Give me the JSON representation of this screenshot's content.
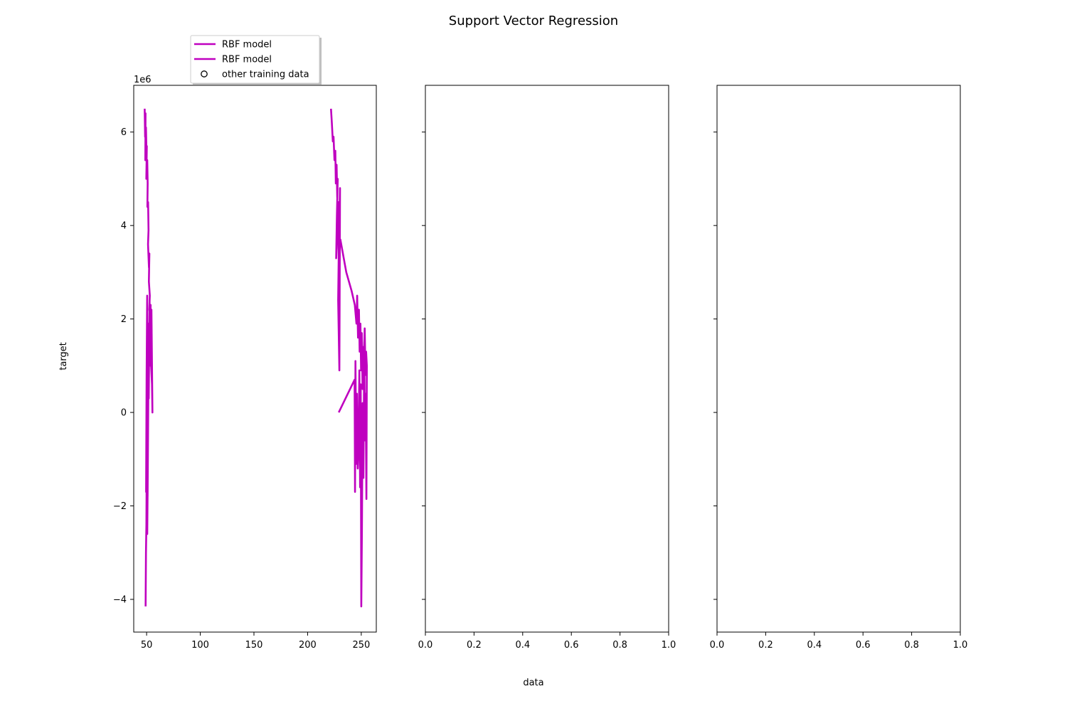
{
  "figure": {
    "title": "Support Vector Regression",
    "xlabel": "data",
    "ylabel": "target"
  },
  "legend": {
    "placement": "above-left",
    "entries": [
      {
        "label": "RBF model",
        "marker": "line",
        "color": "#bf00bf"
      },
      {
        "label": "RBF model",
        "marker": "line",
        "color": "#bf00bf"
      },
      {
        "label": "other training data",
        "marker": "open-circle",
        "color": "#000000"
      }
    ]
  },
  "chart_data": [
    {
      "type": "line",
      "name": "panel-1",
      "xlim": [
        38,
        264
      ],
      "ylim": [
        -4.7,
        7.0
      ],
      "y_scale_note": "1e6",
      "xticks": [
        {
          "value": 50,
          "label": "50"
        },
        {
          "value": 100,
          "label": "100"
        },
        {
          "value": 150,
          "label": "150"
        },
        {
          "value": 200,
          "label": "200"
        },
        {
          "value": 250,
          "label": "250"
        }
      ],
      "yticks": [
        {
          "value": -4,
          "label": "−4"
        },
        {
          "value": -2,
          "label": "−2"
        },
        {
          "value": 0,
          "label": "0"
        },
        {
          "value": 2,
          "label": "2"
        },
        {
          "value": 4,
          "label": "4"
        },
        {
          "value": 6,
          "label": "6"
        }
      ],
      "line_color": "#bf00bf",
      "series": [
        {
          "points": [
            [
              48.2,
              6.5
            ],
            [
              48.6,
              5.9
            ],
            [
              49.0,
              6.4
            ],
            [
              48.8,
              5.4
            ],
            [
              49.4,
              6.1
            ],
            [
              49.9,
              5.5
            ],
            [
              50.2,
              5.7
            ],
            [
              49.7,
              5.0
            ],
            [
              50.6,
              5.4
            ],
            [
              51.0,
              4.9
            ],
            [
              50.7,
              4.4
            ],
            [
              51.4,
              4.5
            ],
            [
              51.8,
              3.9
            ],
            [
              51.3,
              3.6
            ],
            [
              52.2,
              3.1
            ],
            [
              52.6,
              3.4
            ],
            [
              52.1,
              2.8
            ],
            [
              53.0,
              2.5
            ],
            [
              52.5,
              2.2
            ],
            [
              53.4,
              2.0
            ],
            [
              53.8,
              2.3
            ],
            [
              53.2,
              1.7
            ],
            [
              54.2,
              1.8
            ],
            [
              54.6,
              1.4
            ],
            [
              54.0,
              1.1
            ],
            [
              55.0,
              0.6
            ],
            [
              55.4,
              0.0
            ],
            [
              54.5,
              2.2
            ],
            [
              53.6,
              1.0
            ],
            [
              52.8,
              2.4
            ],
            [
              52.0,
              0.3
            ],
            [
              51.5,
              1.9
            ],
            [
              51.0,
              -0.5
            ],
            [
              50.5,
              2.5
            ],
            [
              50.0,
              0.8
            ],
            [
              49.5,
              -1.7
            ],
            [
              50.2,
              1.2
            ],
            [
              50.9,
              -1.8
            ],
            [
              51.6,
              0.4
            ],
            [
              51.1,
              -1.2
            ],
            [
              50.6,
              -2.6
            ],
            [
              50.1,
              -0.8
            ],
            [
              49.8,
              -2.4
            ],
            [
              49.4,
              -3.0
            ],
            [
              49.1,
              -4.15
            ]
          ]
        },
        {
          "points": [
            [
              221.8,
              6.5
            ],
            [
              222.6,
              6.2
            ],
            [
              223.5,
              5.8
            ],
            [
              224.2,
              5.9
            ],
            [
              225.0,
              5.4
            ],
            [
              225.8,
              5.6
            ],
            [
              226.3,
              4.9
            ],
            [
              227.0,
              5.3
            ],
            [
              227.6,
              4.6
            ],
            [
              228.1,
              5.0
            ],
            [
              227.3,
              4.2
            ],
            [
              226.6,
              3.3
            ],
            [
              227.9,
              3.8
            ],
            [
              228.8,
              4.5
            ],
            [
              229.3,
              3.9
            ],
            [
              228.5,
              2.4
            ],
            [
              229.6,
              0.9
            ],
            [
              230.2,
              4.8
            ],
            [
              229.0,
              3.5
            ],
            [
              230.5,
              3.7
            ],
            [
              236.0,
              3.0
            ],
            [
              241.0,
              2.6
            ],
            [
              244.0,
              2.3
            ],
            [
              245.5,
              1.9
            ],
            [
              246.2,
              2.5
            ],
            [
              247.0,
              1.6
            ],
            [
              247.8,
              2.2
            ],
            [
              248.5,
              1.3
            ],
            [
              249.2,
              1.9
            ],
            [
              249.8,
              0.9
            ],
            [
              250.5,
              1.7
            ],
            [
              251.2,
              0.5
            ],
            [
              251.8,
              1.4
            ],
            [
              252.5,
              1.2
            ],
            [
              253.2,
              1.8
            ],
            [
              253.9,
              0.8
            ],
            [
              254.5,
              1.3
            ],
            [
              255.2,
              1.0
            ],
            [
              254.8,
              -1.85
            ],
            [
              254.1,
              0.4
            ],
            [
              253.4,
              -0.6
            ],
            [
              252.8,
              1.5
            ],
            [
              252.0,
              -1.4
            ],
            [
              251.3,
              0.2
            ],
            [
              250.6,
              -2.5
            ],
            [
              250.0,
              -4.15
            ],
            [
              249.5,
              0.6
            ],
            [
              248.9,
              -1.6
            ],
            [
              248.2,
              0.9
            ],
            [
              247.5,
              -0.7
            ],
            [
              246.7,
              -1.2
            ],
            [
              246.0,
              0.4
            ],
            [
              245.3,
              -1.1
            ],
            [
              244.6,
              1.1
            ],
            [
              244.2,
              -1.7
            ],
            [
              243.8,
              0.7
            ],
            [
              229.0,
              0.0
            ]
          ]
        }
      ]
    },
    {
      "type": "line",
      "name": "panel-2",
      "xlim": [
        0.0,
        1.0
      ],
      "ylim": [
        -4.7,
        7.0
      ],
      "xticks": [
        {
          "value": 0.0,
          "label": "0.0"
        },
        {
          "value": 0.2,
          "label": "0.2"
        },
        {
          "value": 0.4,
          "label": "0.4"
        },
        {
          "value": 0.6,
          "label": "0.6"
        },
        {
          "value": 0.8,
          "label": "0.8"
        },
        {
          "value": 1.0,
          "label": "1.0"
        }
      ],
      "yticks": [
        {
          "value": -4
        },
        {
          "value": -2
        },
        {
          "value": 0
        },
        {
          "value": 2
        },
        {
          "value": 4
        },
        {
          "value": 6
        }
      ],
      "series": []
    },
    {
      "type": "line",
      "name": "panel-3",
      "xlim": [
        0.0,
        1.0
      ],
      "ylim": [
        -4.7,
        7.0
      ],
      "xticks": [
        {
          "value": 0.0,
          "label": "0.0"
        },
        {
          "value": 0.2,
          "label": "0.2"
        },
        {
          "value": 0.4,
          "label": "0.4"
        },
        {
          "value": 0.6,
          "label": "0.6"
        },
        {
          "value": 0.8,
          "label": "0.8"
        },
        {
          "value": 1.0,
          "label": "1.0"
        }
      ],
      "yticks": [
        {
          "value": -4
        },
        {
          "value": -2
        },
        {
          "value": 0
        },
        {
          "value": 2
        },
        {
          "value": 4
        },
        {
          "value": 6
        }
      ],
      "series": []
    }
  ]
}
